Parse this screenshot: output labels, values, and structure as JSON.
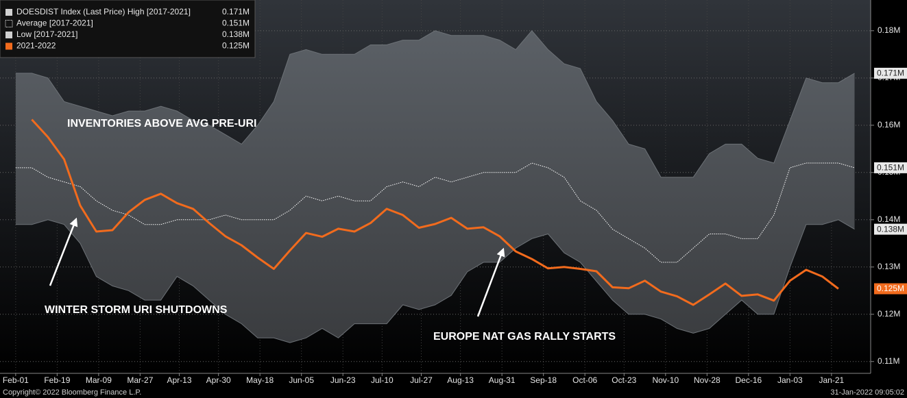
{
  "chart_data": {
    "type": "band_line",
    "x": [
      0,
      7,
      14,
      21,
      28,
      35,
      42,
      49,
      56,
      63,
      70,
      77,
      84,
      91,
      98,
      105,
      112,
      119,
      126,
      133,
      140,
      147,
      154,
      161,
      168,
      175,
      182,
      189,
      196,
      203,
      210,
      217,
      224,
      231,
      238,
      245,
      252,
      259,
      266,
      273,
      280,
      287,
      294,
      301,
      308,
      315,
      322,
      329,
      336,
      343,
      350,
      357,
      364
    ],
    "xlim": [
      -6.8,
      371
    ],
    "xticks": [
      {
        "value": 0,
        "label": "Feb-01"
      },
      {
        "value": 18,
        "label": "Feb-19"
      },
      {
        "value": 36,
        "label": "Mar-09"
      },
      {
        "value": 54,
        "label": "Mar-27"
      },
      {
        "value": 71,
        "label": "Apr-13"
      },
      {
        "value": 88,
        "label": "Apr-30"
      },
      {
        "value": 106,
        "label": "May-18"
      },
      {
        "value": 124,
        "label": "Jun-05"
      },
      {
        "value": 142,
        "label": "Jun-23"
      },
      {
        "value": 159,
        "label": "Jul-10"
      },
      {
        "value": 176,
        "label": "Jul-27"
      },
      {
        "value": 193,
        "label": "Aug-13"
      },
      {
        "value": 211,
        "label": "Aug-31"
      },
      {
        "value": 229,
        "label": "Sep-18"
      },
      {
        "value": 247,
        "label": "Oct-06"
      },
      {
        "value": 264,
        "label": "Oct-23"
      },
      {
        "value": 282,
        "label": "Nov-10"
      },
      {
        "value": 300,
        "label": "Nov-28"
      },
      {
        "value": 318,
        "label": "Dec-16"
      },
      {
        "value": 336,
        "label": "Jan-03"
      },
      {
        "value": 354,
        "label": "Jan-21"
      }
    ],
    "ylim": [
      0.1075,
      0.1865
    ],
    "yticks": [
      {
        "value": 0.11,
        "label": "0.11M"
      },
      {
        "value": 0.12,
        "label": "0.12M"
      },
      {
        "value": 0.13,
        "label": "0.13M"
      },
      {
        "value": 0.14,
        "label": "0.14M"
      },
      {
        "value": 0.15,
        "label": "0.15M"
      },
      {
        "value": 0.16,
        "label": "0.16M"
      },
      {
        "value": 0.17,
        "label": "0.17M"
      },
      {
        "value": 0.18,
        "label": "0.18M"
      }
    ],
    "grid": true,
    "series": [
      {
        "name": "DOESDIST Index (Last Price) High [2017-2021]",
        "role": "high",
        "color": "#d0d0d0",
        "last_value_label": "0.171M",
        "values": [
          0.171,
          0.171,
          0.17,
          0.165,
          0.164,
          0.163,
          0.162,
          0.163,
          0.163,
          0.164,
          0.163,
          0.161,
          0.16,
          0.158,
          0.156,
          0.16,
          0.165,
          0.175,
          0.176,
          0.175,
          0.175,
          0.175,
          0.177,
          0.177,
          0.178,
          0.178,
          0.18,
          0.179,
          0.179,
          0.179,
          0.178,
          0.176,
          0.18,
          0.176,
          0.173,
          0.172,
          0.165,
          0.161,
          0.156,
          0.155,
          0.149,
          0.149,
          0.149,
          0.154,
          0.156,
          0.156,
          0.153,
          0.152,
          0.161,
          0.17,
          0.169,
          0.169,
          0.171
        ]
      },
      {
        "name": "Average  [2017-2021]",
        "role": "average",
        "color": "#ffffff",
        "last_value_label": "0.151M",
        "values": [
          0.151,
          0.151,
          0.149,
          0.148,
          0.147,
          0.144,
          0.142,
          0.141,
          0.139,
          0.139,
          0.14,
          0.14,
          0.14,
          0.141,
          0.14,
          0.14,
          0.14,
          0.142,
          0.145,
          0.144,
          0.145,
          0.144,
          0.144,
          0.147,
          0.148,
          0.147,
          0.149,
          0.148,
          0.149,
          0.15,
          0.15,
          0.15,
          0.152,
          0.151,
          0.149,
          0.144,
          0.142,
          0.138,
          0.136,
          0.134,
          0.131,
          0.131,
          0.134,
          0.137,
          0.137,
          0.136,
          0.136,
          0.141,
          0.151,
          0.152,
          0.152,
          0.152,
          0.151
        ]
      },
      {
        "name": "Low  [2017-2021]",
        "role": "low",
        "color": "#d0d0d0",
        "last_value_label": "0.138M",
        "values": [
          0.139,
          0.139,
          0.14,
          0.139,
          0.135,
          0.128,
          0.126,
          0.125,
          0.123,
          0.123,
          0.128,
          0.126,
          0.123,
          0.12,
          0.118,
          0.115,
          0.115,
          0.114,
          0.115,
          0.117,
          0.115,
          0.118,
          0.118,
          0.118,
          0.122,
          0.121,
          0.122,
          0.124,
          0.129,
          0.131,
          0.131,
          0.134,
          0.136,
          0.137,
          0.133,
          0.131,
          0.127,
          0.123,
          0.12,
          0.12,
          0.119,
          0.117,
          0.116,
          0.117,
          0.12,
          0.123,
          0.12,
          0.12,
          0.13,
          0.139,
          0.139,
          0.14,
          0.138
        ]
      },
      {
        "name": "2021-2022",
        "role": "current",
        "color": "#f26b1d",
        "last_value_label": "0.125M",
        "values": [
          null,
          0.1612,
          0.1575,
          0.1528,
          0.143,
          0.1375,
          0.1378,
          0.1416,
          0.1442,
          0.1455,
          0.1435,
          0.1423,
          0.1393,
          0.1365,
          0.1346,
          0.132,
          0.1296,
          0.1335,
          0.1372,
          0.1364,
          0.1381,
          0.1375,
          0.1393,
          0.1423,
          0.141,
          0.1383,
          0.1391,
          0.1404,
          0.1381,
          0.1384,
          0.1365,
          0.1333,
          0.1317,
          0.1297,
          0.13,
          0.1296,
          0.1291,
          0.1257,
          0.1255,
          0.1271,
          0.1248,
          0.1238,
          0.122,
          0.1242,
          0.1265,
          0.1239,
          0.1242,
          0.1229,
          0.1271,
          0.1294,
          0.128,
          0.1254,
          null
        ]
      }
    ],
    "annotations": [
      "INVENTORIES ABOVE AVG PRE-URI",
      "WINTER STORM URI SHUTDOWNS",
      "EUROPE NAT GAS RALLY STARTS"
    ],
    "footer_left": "Copyright© 2022 Bloomberg Finance L.P.",
    "footer_right": "31-Jan-2022 09:05:02"
  }
}
